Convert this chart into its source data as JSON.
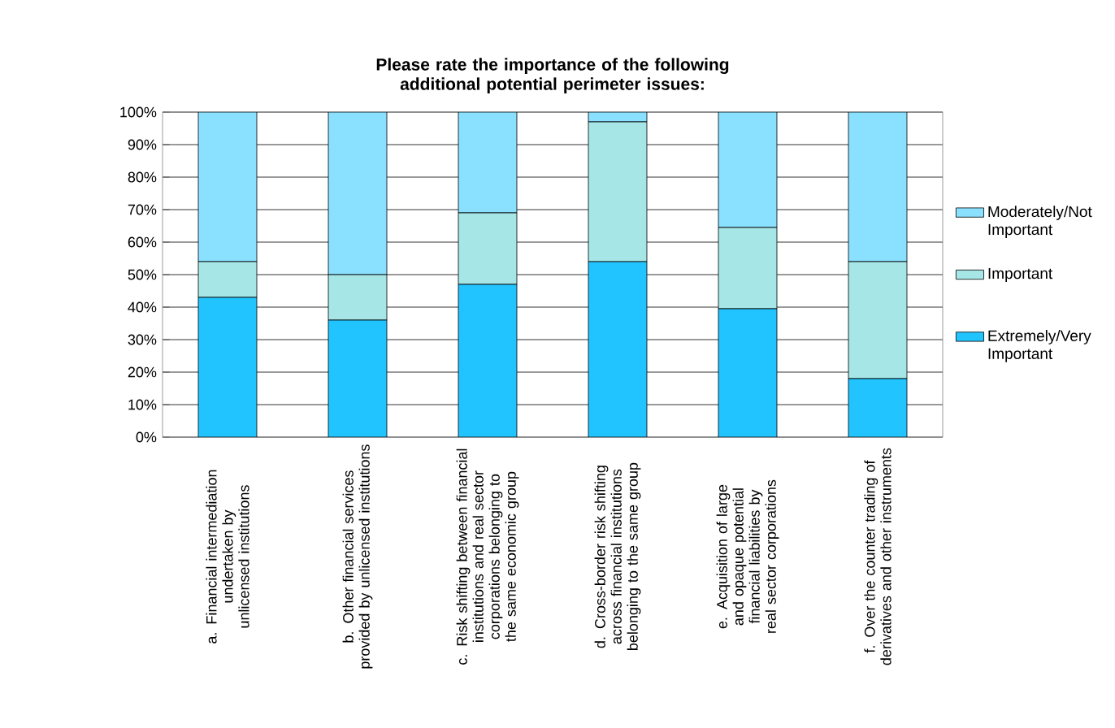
{
  "chart_data": {
    "type": "bar",
    "stacked": true,
    "title": "Please rate the importance of the following additional potential perimeter issues:",
    "categories": [
      "a. Financial intermediation undertaken by unlicensed institutions",
      "b. Other financial services provided by unlicensed institutions",
      "c. Risk shifting between financial institutions and real sector corporations belonging to the same economic group",
      "d. Cross-border risk shifting across financial institutions belonging to the same group",
      "e. Acquisition of large and opaque potential financial liabilities by real sector corporations",
      "f. Over the counter trading of derivatives and other instruments"
    ],
    "series": [
      {
        "name": "Extremely/Very Important",
        "color": "#22c4ff",
        "values": [
          43,
          36,
          47,
          54,
          39.5,
          18
        ]
      },
      {
        "name": "Important",
        "color": "#a6e6e6",
        "values": [
          11,
          14,
          22,
          43,
          25,
          36
        ]
      },
      {
        "name": "Moderately/Not Important",
        "color": "#8ae0ff",
        "values": [
          46,
          50,
          31,
          3,
          35.5,
          46
        ]
      }
    ],
    "ylim": [
      0,
      100
    ],
    "yticks": [
      {
        "value": 0,
        "label": "0%"
      },
      {
        "value": 10,
        "label": "10%"
      },
      {
        "value": 20,
        "label": "20%"
      },
      {
        "value": 30,
        "label": "30%"
      },
      {
        "value": 40,
        "label": "40%"
      },
      {
        "value": 50,
        "label": "50%"
      },
      {
        "value": 60,
        "label": "60%"
      },
      {
        "value": 70,
        "label": "70%"
      },
      {
        "value": 80,
        "label": "80%"
      },
      {
        "value": 90,
        "label": "90%"
      },
      {
        "value": 100,
        "label": "100%"
      }
    ],
    "grid": "y",
    "legend": "right"
  }
}
